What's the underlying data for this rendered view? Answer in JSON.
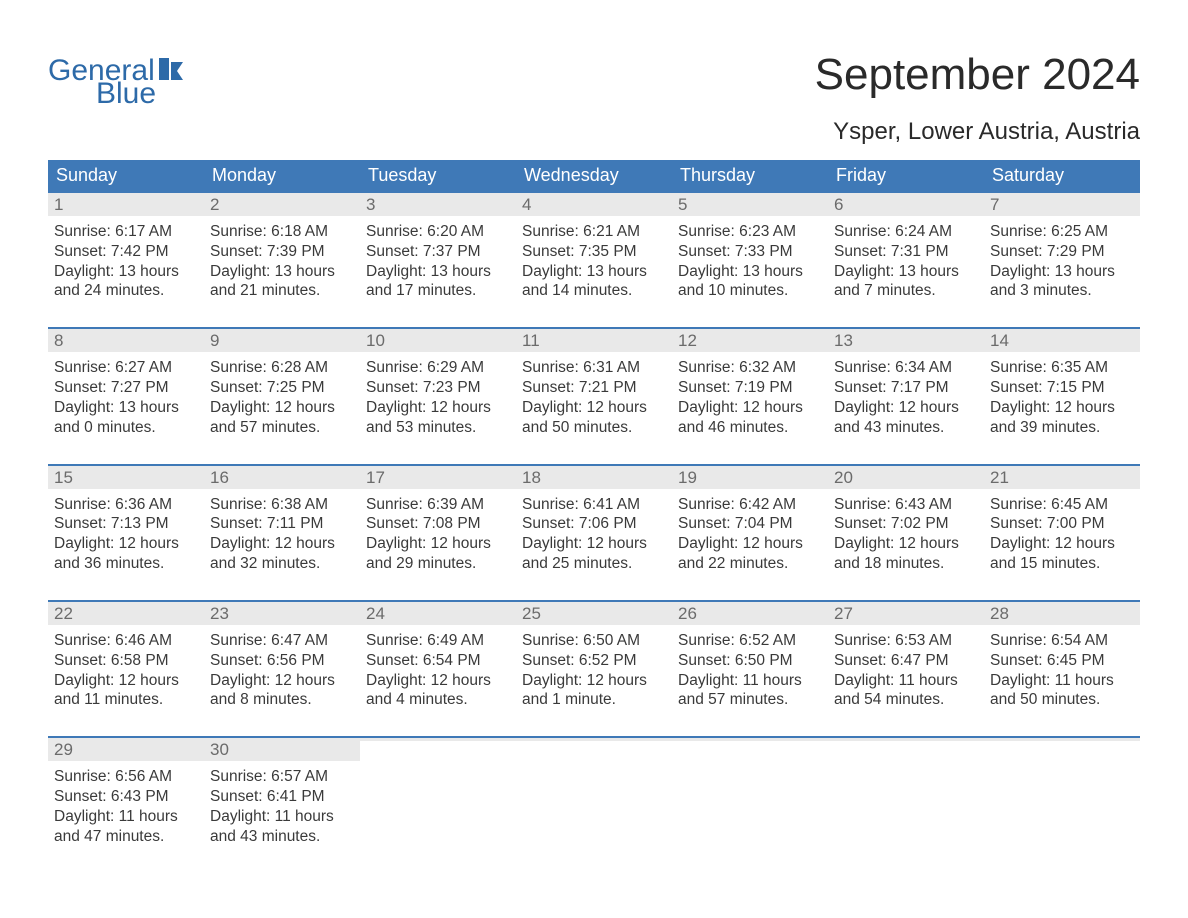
{
  "brand": {
    "name1": "General",
    "name2": "Blue",
    "color": "#2d6aa8"
  },
  "title": "September 2024",
  "location": "Ysper, Lower Austria, Austria",
  "colors": {
    "header_bg": "#3f79b7",
    "header_text": "#ffffff",
    "week_border": "#3f79b7",
    "daynum_bg": "#e9e9e9",
    "daynum_text": "#6b6b6b",
    "body_text": "#3a3a3a",
    "background": "#ffffff"
  },
  "weekdays": [
    "Sunday",
    "Monday",
    "Tuesday",
    "Wednesday",
    "Thursday",
    "Friday",
    "Saturday"
  ],
  "weeks": [
    [
      {
        "n": "1",
        "sr": "Sunrise: 6:17 AM",
        "ss": "Sunset: 7:42 PM",
        "d1": "Daylight: 13 hours",
        "d2": "and 24 minutes."
      },
      {
        "n": "2",
        "sr": "Sunrise: 6:18 AM",
        "ss": "Sunset: 7:39 PM",
        "d1": "Daylight: 13 hours",
        "d2": "and 21 minutes."
      },
      {
        "n": "3",
        "sr": "Sunrise: 6:20 AM",
        "ss": "Sunset: 7:37 PM",
        "d1": "Daylight: 13 hours",
        "d2": "and 17 minutes."
      },
      {
        "n": "4",
        "sr": "Sunrise: 6:21 AM",
        "ss": "Sunset: 7:35 PM",
        "d1": "Daylight: 13 hours",
        "d2": "and 14 minutes."
      },
      {
        "n": "5",
        "sr": "Sunrise: 6:23 AM",
        "ss": "Sunset: 7:33 PM",
        "d1": "Daylight: 13 hours",
        "d2": "and 10 minutes."
      },
      {
        "n": "6",
        "sr": "Sunrise: 6:24 AM",
        "ss": "Sunset: 7:31 PM",
        "d1": "Daylight: 13 hours",
        "d2": "and 7 minutes."
      },
      {
        "n": "7",
        "sr": "Sunrise: 6:25 AM",
        "ss": "Sunset: 7:29 PM",
        "d1": "Daylight: 13 hours",
        "d2": "and 3 minutes."
      }
    ],
    [
      {
        "n": "8",
        "sr": "Sunrise: 6:27 AM",
        "ss": "Sunset: 7:27 PM",
        "d1": "Daylight: 13 hours",
        "d2": "and 0 minutes."
      },
      {
        "n": "9",
        "sr": "Sunrise: 6:28 AM",
        "ss": "Sunset: 7:25 PM",
        "d1": "Daylight: 12 hours",
        "d2": "and 57 minutes."
      },
      {
        "n": "10",
        "sr": "Sunrise: 6:29 AM",
        "ss": "Sunset: 7:23 PM",
        "d1": "Daylight: 12 hours",
        "d2": "and 53 minutes."
      },
      {
        "n": "11",
        "sr": "Sunrise: 6:31 AM",
        "ss": "Sunset: 7:21 PM",
        "d1": "Daylight: 12 hours",
        "d2": "and 50 minutes."
      },
      {
        "n": "12",
        "sr": "Sunrise: 6:32 AM",
        "ss": "Sunset: 7:19 PM",
        "d1": "Daylight: 12 hours",
        "d2": "and 46 minutes."
      },
      {
        "n": "13",
        "sr": "Sunrise: 6:34 AM",
        "ss": "Sunset: 7:17 PM",
        "d1": "Daylight: 12 hours",
        "d2": "and 43 minutes."
      },
      {
        "n": "14",
        "sr": "Sunrise: 6:35 AM",
        "ss": "Sunset: 7:15 PM",
        "d1": "Daylight: 12 hours",
        "d2": "and 39 minutes."
      }
    ],
    [
      {
        "n": "15",
        "sr": "Sunrise: 6:36 AM",
        "ss": "Sunset: 7:13 PM",
        "d1": "Daylight: 12 hours",
        "d2": "and 36 minutes."
      },
      {
        "n": "16",
        "sr": "Sunrise: 6:38 AM",
        "ss": "Sunset: 7:11 PM",
        "d1": "Daylight: 12 hours",
        "d2": "and 32 minutes."
      },
      {
        "n": "17",
        "sr": "Sunrise: 6:39 AM",
        "ss": "Sunset: 7:08 PM",
        "d1": "Daylight: 12 hours",
        "d2": "and 29 minutes."
      },
      {
        "n": "18",
        "sr": "Sunrise: 6:41 AM",
        "ss": "Sunset: 7:06 PM",
        "d1": "Daylight: 12 hours",
        "d2": "and 25 minutes."
      },
      {
        "n": "19",
        "sr": "Sunrise: 6:42 AM",
        "ss": "Sunset: 7:04 PM",
        "d1": "Daylight: 12 hours",
        "d2": "and 22 minutes."
      },
      {
        "n": "20",
        "sr": "Sunrise: 6:43 AM",
        "ss": "Sunset: 7:02 PM",
        "d1": "Daylight: 12 hours",
        "d2": "and 18 minutes."
      },
      {
        "n": "21",
        "sr": "Sunrise: 6:45 AM",
        "ss": "Sunset: 7:00 PM",
        "d1": "Daylight: 12 hours",
        "d2": "and 15 minutes."
      }
    ],
    [
      {
        "n": "22",
        "sr": "Sunrise: 6:46 AM",
        "ss": "Sunset: 6:58 PM",
        "d1": "Daylight: 12 hours",
        "d2": "and 11 minutes."
      },
      {
        "n": "23",
        "sr": "Sunrise: 6:47 AM",
        "ss": "Sunset: 6:56 PM",
        "d1": "Daylight: 12 hours",
        "d2": "and 8 minutes."
      },
      {
        "n": "24",
        "sr": "Sunrise: 6:49 AM",
        "ss": "Sunset: 6:54 PM",
        "d1": "Daylight: 12 hours",
        "d2": "and 4 minutes."
      },
      {
        "n": "25",
        "sr": "Sunrise: 6:50 AM",
        "ss": "Sunset: 6:52 PM",
        "d1": "Daylight: 12 hours",
        "d2": "and 1 minute."
      },
      {
        "n": "26",
        "sr": "Sunrise: 6:52 AM",
        "ss": "Sunset: 6:50 PM",
        "d1": "Daylight: 11 hours",
        "d2": "and 57 minutes."
      },
      {
        "n": "27",
        "sr": "Sunrise: 6:53 AM",
        "ss": "Sunset: 6:47 PM",
        "d1": "Daylight: 11 hours",
        "d2": "and 54 minutes."
      },
      {
        "n": "28",
        "sr": "Sunrise: 6:54 AM",
        "ss": "Sunset: 6:45 PM",
        "d1": "Daylight: 11 hours",
        "d2": "and 50 minutes."
      }
    ],
    [
      {
        "n": "29",
        "sr": "Sunrise: 6:56 AM",
        "ss": "Sunset: 6:43 PM",
        "d1": "Daylight: 11 hours",
        "d2": "and 47 minutes."
      },
      {
        "n": "30",
        "sr": "Sunrise: 6:57 AM",
        "ss": "Sunset: 6:41 PM",
        "d1": "Daylight: 11 hours",
        "d2": "and 43 minutes."
      },
      {
        "empty": true
      },
      {
        "empty": true
      },
      {
        "empty": true
      },
      {
        "empty": true
      },
      {
        "empty": true
      }
    ]
  ]
}
